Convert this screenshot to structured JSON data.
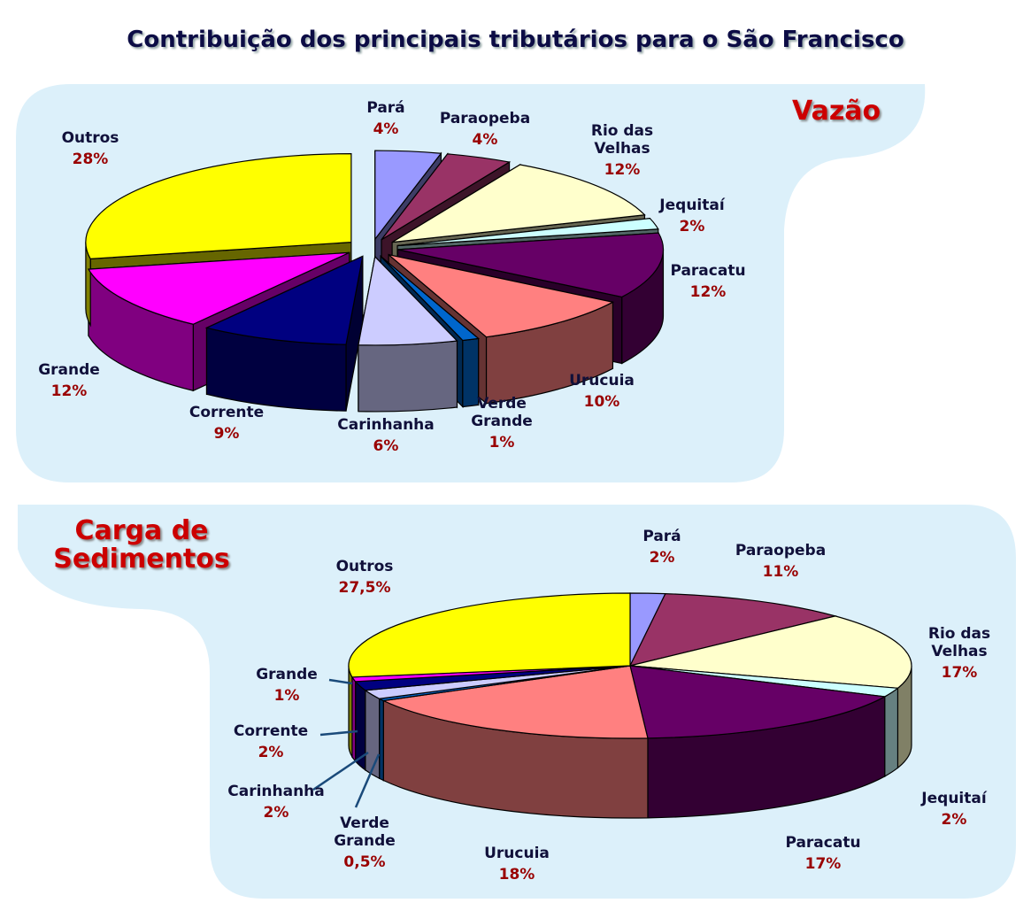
{
  "title": "Contribuição dos principais tributários para o São Francisco",
  "chart_data": [
    {
      "type": "pie",
      "style": "3d-exploded",
      "title": "Vazão",
      "categories": [
        "Pará",
        "Paraopeba",
        "Rio das Velhas",
        "Jequitaí",
        "Paracatu",
        "Urucuia",
        "Verde Grande",
        "Carinhanha",
        "Corrente",
        "Grande",
        "Outros"
      ],
      "values": [
        4,
        4,
        12,
        2,
        12,
        10,
        1,
        6,
        9,
        12,
        28
      ],
      "value_labels": [
        "4%",
        "4%",
        "12%",
        "2%",
        "12%",
        "10%",
        "1%",
        "6%",
        "9%",
        "12%",
        "28%"
      ],
      "colors": [
        "#9999ff",
        "#993366",
        "#ffffcc",
        "#ccffff",
        "#660066",
        "#ff8080",
        "#0066cc",
        "#ccccff",
        "#000080",
        "#ff00ff",
        "#ffff00"
      ]
    },
    {
      "type": "pie",
      "style": "3d",
      "title": "Carga de Sedimentos",
      "categories": [
        "Pará",
        "Paraopeba",
        "Rio das Velhas",
        "Jequitaí",
        "Paracatu",
        "Urucuia",
        "Verde Grande",
        "Carinhanha",
        "Corrente",
        "Grande",
        "Outros"
      ],
      "values": [
        2,
        11,
        17,
        2,
        17,
        18,
        0.5,
        2,
        2,
        1,
        27.5
      ],
      "value_labels": [
        "2%",
        "11%",
        "17%",
        "2%",
        "17%",
        "18%",
        "0,5%",
        "2%",
        "2%",
        "1%",
        "27,5%"
      ],
      "colors": [
        "#9999ff",
        "#993366",
        "#ffffcc",
        "#ccffff",
        "#660066",
        "#ff8080",
        "#0066cc",
        "#ccccff",
        "#000080",
        "#ff00ff",
        "#ffff00"
      ]
    }
  ]
}
